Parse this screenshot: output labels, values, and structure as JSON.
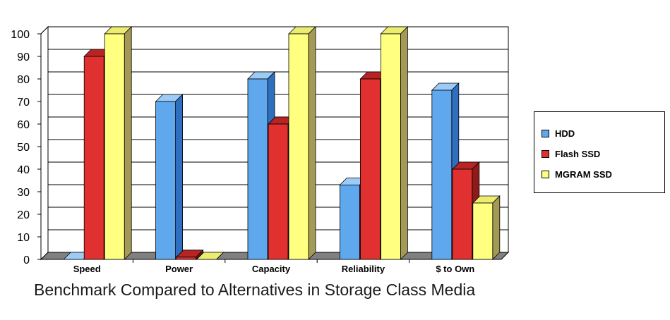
{
  "chart_data": {
    "type": "bar",
    "categories": [
      "Speed",
      "Power",
      "Capacity",
      "Reliability",
      "$ to Own"
    ],
    "series": [
      {
        "name": "HDD",
        "values": [
          0,
          70,
          80,
          33,
          75
        ],
        "color": "#5fa8ee",
        "side": "#2f6fbf",
        "top": "#9ccbf6"
      },
      {
        "name": "Flash SSD",
        "values": [
          90,
          1,
          60,
          80,
          40
        ],
        "color": "#e03030",
        "side": "#8e1a1a",
        "top": "#b82424"
      },
      {
        "name": "MGRAM SSD",
        "values": [
          100,
          0,
          100,
          100,
          25
        ],
        "color": "#ffff80",
        "side": "#a39b55",
        "top": "#ecec70"
      }
    ],
    "ylim": [
      0,
      100
    ],
    "yticks": [
      0,
      10,
      20,
      30,
      40,
      50,
      60,
      70,
      80,
      90,
      100
    ],
    "grid": true,
    "legend_position": "right",
    "title": ""
  },
  "caption": "Benchmark Compared to Alternatives in Storage Class Media"
}
